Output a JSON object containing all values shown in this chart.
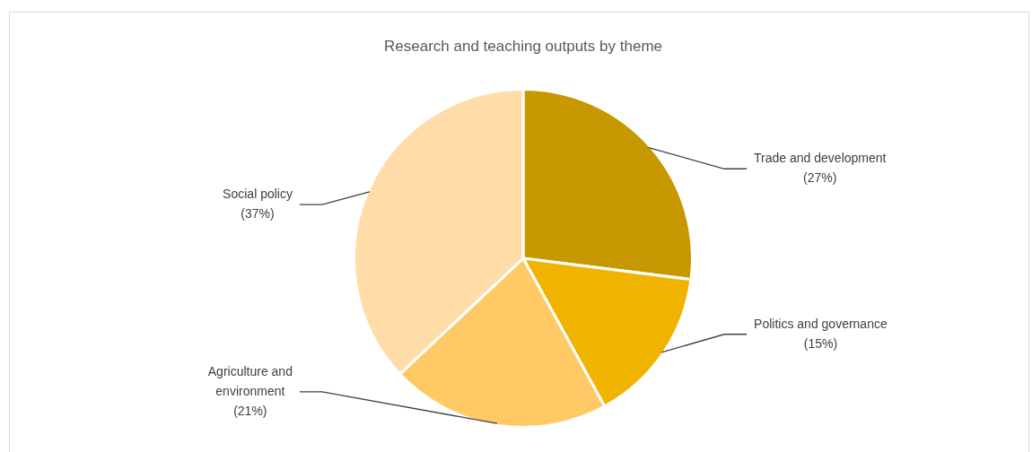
{
  "chart_data": {
    "type": "pie",
    "title": "Research and teaching outputs by theme",
    "categories": [
      "Trade and development",
      "Politics and governance",
      "Agriculture and environment",
      "Social policy"
    ],
    "values": [
      27,
      15,
      21,
      37
    ],
    "colors": [
      "#c89800",
      "#f0b400",
      "#ffc966",
      "#ffdca8"
    ],
    "value_labels": [
      "(27%)",
      "(15%)",
      "(21%)",
      "(37%)"
    ],
    "legend": false
  }
}
